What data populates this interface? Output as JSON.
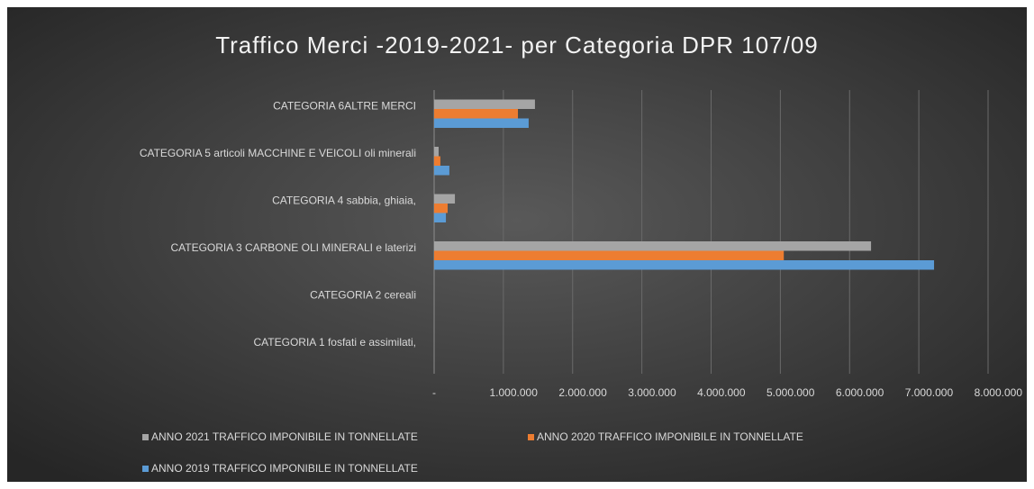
{
  "chart_data": {
    "type": "hbar",
    "title": "Traffico Merci -2019-2021- per Categoria DPR 107/09",
    "categories": [
      "CATEGORIA 1 fosfati e assimilati,",
      "CATEGORIA 2 cereali",
      "CATEGORIA 3 CARBONE OLI MINERALI e laterizi",
      "CATEGORIA 4 sabbia, ghiaia,",
      "CATEGORIA 5 articoli  MACCHINE E VEICOLI oli minerali",
      "CATEGORIA 6ALTRE MERCI"
    ],
    "series": [
      {
        "name": "ANNO 2021 TRAFFICO IMPONIBILE IN TONNELLATE",
        "color": "#a5a5a5",
        "values": [
          0,
          0,
          6310000,
          300000,
          65000,
          1456000
        ]
      },
      {
        "name": "ANNO 2020 TRAFFICO IMPONIBILE IN TONNELLATE",
        "color": "#ed7d31",
        "values": [
          0,
          0,
          5050000,
          195000,
          90000,
          1210000
        ]
      },
      {
        "name": "ANNO 2019 TRAFFICO IMPONIBILE IN TONNELLATE",
        "color": "#5b9bd5",
        "values": [
          0,
          0,
          7220000,
          170000,
          220000,
          1365000
        ]
      }
    ],
    "xlim": [
      0,
      8000000
    ],
    "xticks": [
      {
        "value": 0,
        "label": "-"
      },
      {
        "value": 1000000,
        "label": "1.000.000"
      },
      {
        "value": 2000000,
        "label": "2.000.000"
      },
      {
        "value": 3000000,
        "label": "3.000.000"
      },
      {
        "value": 4000000,
        "label": "4.000.000"
      },
      {
        "value": 5000000,
        "label": "5.000.000"
      },
      {
        "value": 6000000,
        "label": "6.000.000"
      },
      {
        "value": 7000000,
        "label": "7.000.000"
      },
      {
        "value": 8000000,
        "label": "8.000.000"
      }
    ],
    "grid": true,
    "legend": "bottom"
  }
}
